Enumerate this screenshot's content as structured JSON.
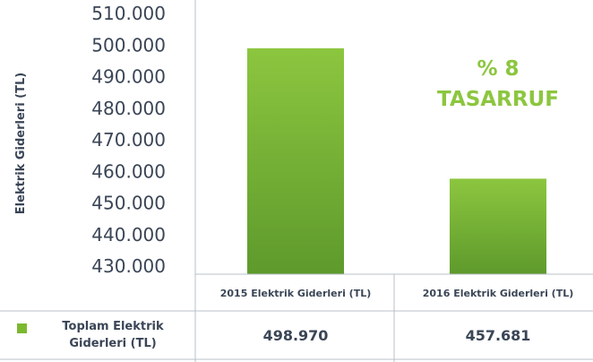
{
  "chart_data": {
    "type": "bar",
    "ylabel": "Elektrik Giderleri (TL)",
    "ylim": [
      430000,
      510000
    ],
    "yticks": [
      "430.000",
      "440.000",
      "450.000",
      "460.000",
      "470.000",
      "480.000",
      "490.000",
      "500.000",
      "510.000"
    ],
    "categories": [
      "2015 Elektrik Giderleri (TL)",
      "2016 Elektrik Giderleri (TL)"
    ],
    "series": [
      {
        "name": "Toplam Elektrik Giderleri (TL)",
        "name_lines": [
          "Toplam Elektrik",
          "Giderleri (TL)"
        ],
        "values": [
          498970,
          457681
        ],
        "value_labels": [
          "498.970",
          "457.681"
        ],
        "color": "#7cb82f"
      }
    ],
    "annotation": [
      "% 8",
      "TASARRUF"
    ],
    "annotation_color": "#8cc63f",
    "grid": false,
    "legend_position": "bottom-table"
  }
}
